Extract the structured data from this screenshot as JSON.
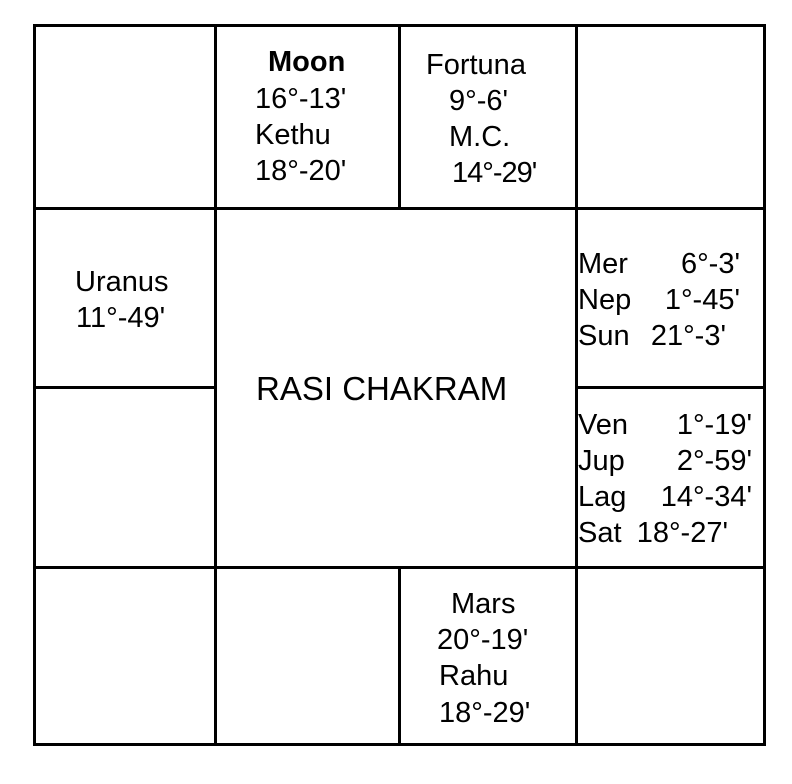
{
  "chart_title": "RASI CHAKRAM",
  "houses": {
    "top_2": {
      "lines": [
        "Moon",
        "16°-13'",
        "Kethu",
        "18°-20'"
      ]
    },
    "top_3": {
      "lines": [
        "Fortuna",
        "9°-6'",
        "M.C.",
        "14°-29'"
      ]
    },
    "left_2": {
      "lines": [
        "Uranus",
        "11°-49'"
      ]
    },
    "right_2": {
      "rows": [
        {
          "planet": "Mer",
          "degree": "6°-3'"
        },
        {
          "planet": "Nep",
          "degree": "1°-45'"
        },
        {
          "planet": "Sun",
          "degree": "21°-3'"
        }
      ]
    },
    "right_3": {
      "rows": [
        {
          "planet": "Ven",
          "degree": "1°-19'"
        },
        {
          "planet": "Jup",
          "degree": "2°-59'"
        },
        {
          "planet": "Lag",
          "degree": "14°-34'"
        },
        {
          "planet": "Sat",
          "degree": "18°-27'"
        }
      ]
    },
    "bottom_3": {
      "lines": [
        "Mars",
        "20°-19'",
        "Rahu",
        "18°-29'"
      ]
    }
  }
}
